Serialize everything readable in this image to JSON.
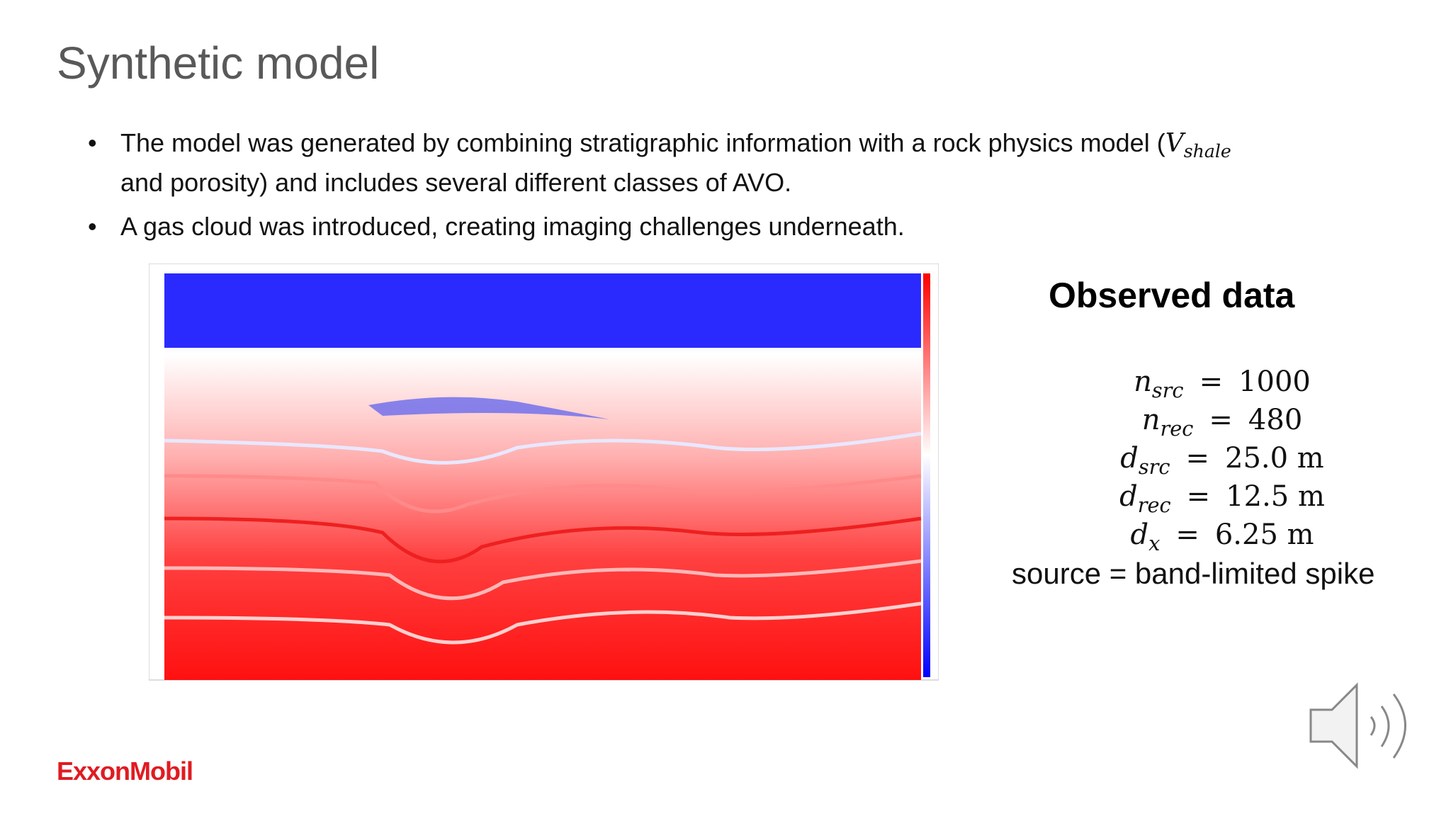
{
  "header": {
    "title": "Synthetic model"
  },
  "bullets": [
    {
      "text": "The model was generated by combining stratigraphic information with a rock physics model (",
      "math_symbol": "V",
      "math_subscript": "shale",
      "text_after": "and porosity) and includes several different classes of AVO."
    },
    {
      "text": "A gas cloud was introduced, creating imaging challenges underneath."
    }
  ],
  "observed": {
    "title": "Observed data",
    "equations": [
      {
        "symbol": "n",
        "subscript": "src",
        "relation": "=",
        "value": "1000"
      },
      {
        "symbol": "n",
        "subscript": "rec",
        "relation": "=",
        "value": "480"
      },
      {
        "symbol": "d",
        "subscript": "src",
        "relation": "=",
        "value": "25.0 m"
      },
      {
        "symbol": "d",
        "subscript": "rec",
        "relation": "=",
        "value": "12.5 m"
      },
      {
        "symbol": "d",
        "subscript": "x",
        "relation": "=",
        "value": "6.25 m"
      }
    ],
    "source": "source = band-limited spike"
  },
  "footer": {
    "logo": "ExxonMobil"
  }
}
